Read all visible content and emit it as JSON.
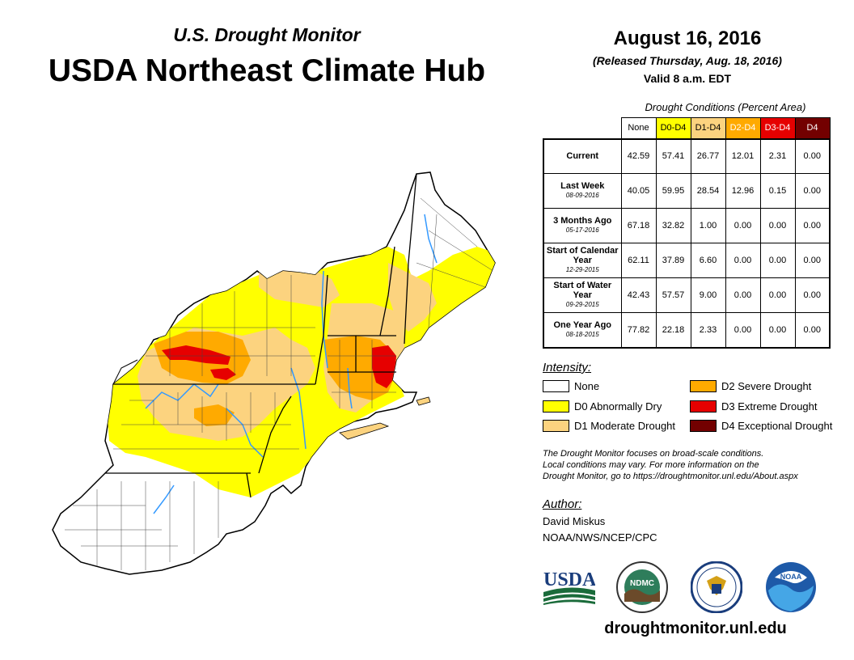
{
  "header": {
    "subtitle": "U.S. Drought Monitor",
    "title": "USDA Northeast Climate Hub"
  },
  "release": {
    "date": "August 16, 2016",
    "released": "(Released Thursday, Aug. 18, 2016)",
    "valid": "Valid 8 a.m. EDT"
  },
  "conditions": {
    "caption": "Drought Conditions (Percent Area)",
    "columns": [
      "None",
      "D0-D4",
      "D1-D4",
      "D2-D4",
      "D3-D4",
      "D4"
    ],
    "rows": [
      {
        "label": "Current",
        "date": "",
        "values": [
          "42.59",
          "57.41",
          "26.77",
          "12.01",
          "2.31",
          "0.00"
        ]
      },
      {
        "label": "Last Week",
        "date": "08-09-2016",
        "values": [
          "40.05",
          "59.95",
          "28.54",
          "12.96",
          "0.15",
          "0.00"
        ]
      },
      {
        "label": "3 Months Ago",
        "date": "05-17-2016",
        "values": [
          "67.18",
          "32.82",
          "1.00",
          "0.00",
          "0.00",
          "0.00"
        ]
      },
      {
        "label": "Start of Calendar Year",
        "date": "12-29-2015",
        "values": [
          "62.11",
          "37.89",
          "6.60",
          "0.00",
          "0.00",
          "0.00"
        ]
      },
      {
        "label": "Start of Water Year",
        "date": "09-29-2015",
        "values": [
          "42.43",
          "57.57",
          "9.00",
          "0.00",
          "0.00",
          "0.00"
        ]
      },
      {
        "label": "One Year Ago",
        "date": "08-18-2015",
        "values": [
          "77.82",
          "22.18",
          "2.33",
          "0.00",
          "0.00",
          "0.00"
        ]
      }
    ]
  },
  "legend": {
    "title": "Intensity:",
    "items": [
      {
        "label": "None",
        "color": "#ffffff"
      },
      {
        "label": "D0 Abnormally Dry",
        "color": "#ffff00"
      },
      {
        "label": "D1 Moderate Drought",
        "color": "#fcd37f"
      },
      {
        "label": "D2 Severe Drought",
        "color": "#ffaa00"
      },
      {
        "label": "D3 Extreme Drought",
        "color": "#e60000"
      },
      {
        "label": "D4 Exceptional Drought",
        "color": "#730000"
      }
    ]
  },
  "note": {
    "line1": "The Drought Monitor focuses on broad-scale conditions.",
    "line2": "Local conditions may vary. For more information on the",
    "line3": "Drought Monitor, go to https://droughtmonitor.unl.edu/About.aspx"
  },
  "author": {
    "label": "Author:",
    "name": "David Miskus",
    "org": "NOAA/NWS/NCEP/CPC"
  },
  "logos": {
    "usda": "USDA",
    "ndmc": "NDMC",
    "noaa": "NOAA"
  },
  "site": "droughtmonitor.unl.edu"
}
